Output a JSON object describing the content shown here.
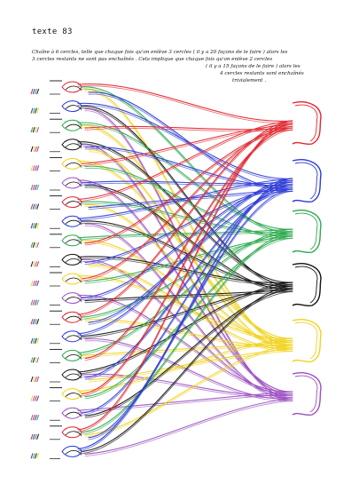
{
  "document": {
    "label": "texte 83",
    "handwriting": [
      "Chaîne à 6 cercles, telle que chaque fois qu'on enlève 3 cercles ( il y a 20 façons de le faire ) alors les",
      "3 cercles restants ne sont pas enchaînés . Cela implique que chaque fois qu'on enlève 2 cercles",
      "( il y a 15 façons de le faire ) alors les",
      "4 cercles restants sont enchaînés",
      "trivialement ."
    ]
  },
  "palette": {
    "red": "#e0262e",
    "blue": "#2b39d6",
    "green": "#2aa84a",
    "black": "#111111",
    "yellow": "#f0d21a",
    "purple": "#9b4fc0"
  }
}
